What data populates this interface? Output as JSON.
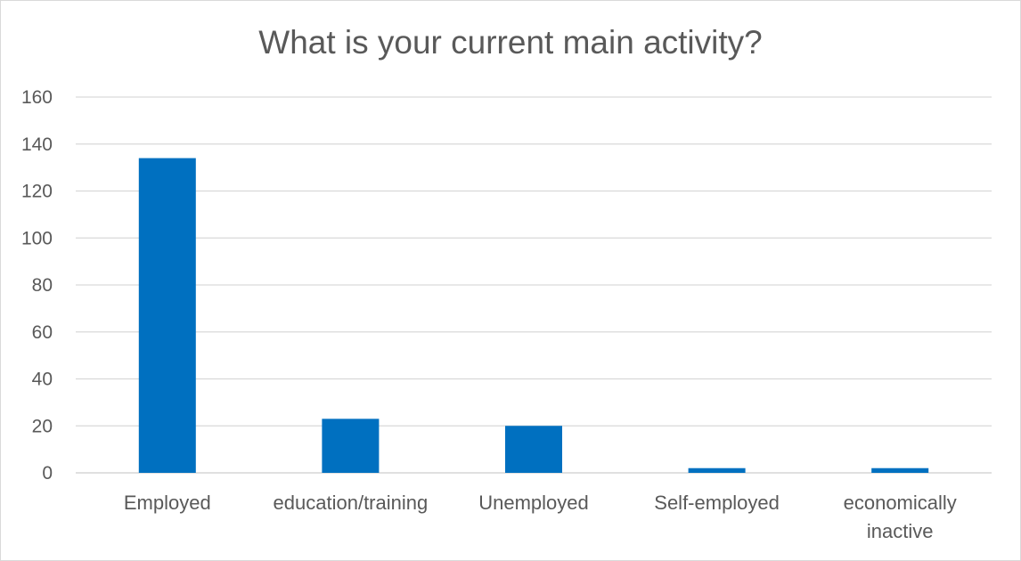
{
  "chart_data": {
    "type": "bar",
    "title": "What is your current main activity?",
    "categories": [
      [
        "Employed"
      ],
      [
        "education/training"
      ],
      [
        "Unemployed"
      ],
      [
        "Self-employed"
      ],
      [
        "economically",
        "inactive"
      ]
    ],
    "values": [
      134,
      23,
      20,
      2,
      2
    ],
    "ylim": [
      0,
      160
    ],
    "yticks": [
      0,
      20,
      40,
      60,
      80,
      100,
      120,
      140,
      160
    ],
    "xlabel": "",
    "ylabel": "",
    "grid": true,
    "legend": "none",
    "bar_color": "#0070c0",
    "grid_color": "#d9d9d9",
    "text_color": "#595959"
  }
}
